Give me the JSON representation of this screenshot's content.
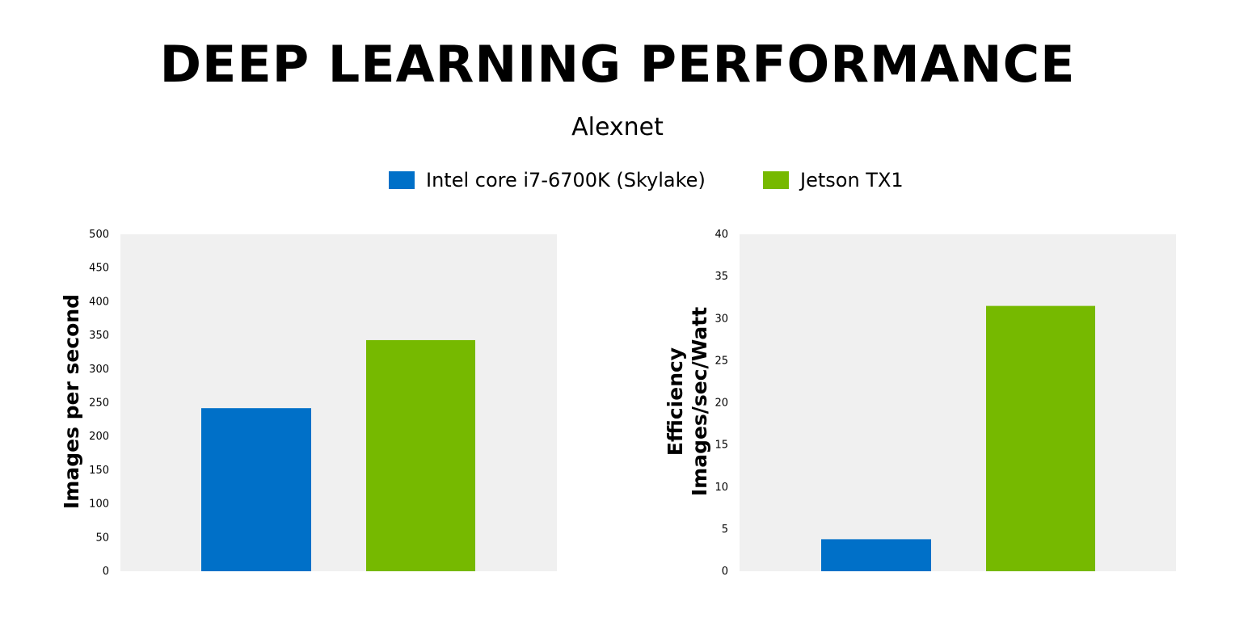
{
  "title": "DEEP LEARNING PERFORMANCE",
  "subtitle": "Alexnet",
  "legend": [
    {
      "label": "Intel core i7-6700K (Skylake)",
      "color": "#0070c8"
    },
    {
      "label": "Jetson TX1",
      "color": "#76b900"
    }
  ],
  "colors": {
    "plot_background": "#f0f0f0"
  },
  "chart_data": [
    {
      "type": "bar",
      "title": "",
      "xlabel": "",
      "ylabel_lines": [
        "Images per second"
      ],
      "categories": [
        "Intel core i7-6700K (Skylake)",
        "Jetson TX1"
      ],
      "values": [
        242,
        343
      ],
      "ylim": [
        0,
        500
      ],
      "yticks": [
        0,
        50,
        100,
        150,
        200,
        250,
        300,
        350,
        400,
        450,
        500
      ],
      "grid": false,
      "legend": "top-center"
    },
    {
      "type": "bar",
      "title": "",
      "xlabel": "",
      "ylabel_lines": [
        "Efficiency",
        "Images/sec/Watt"
      ],
      "categories": [
        "Intel core i7-6700K (Skylake)",
        "Jetson TX1"
      ],
      "values": [
        3.8,
        31.5
      ],
      "ylim": [
        0,
        40
      ],
      "yticks": [
        0,
        5,
        10,
        15,
        20,
        25,
        30,
        35,
        40
      ],
      "grid": false,
      "legend": "top-center"
    }
  ]
}
